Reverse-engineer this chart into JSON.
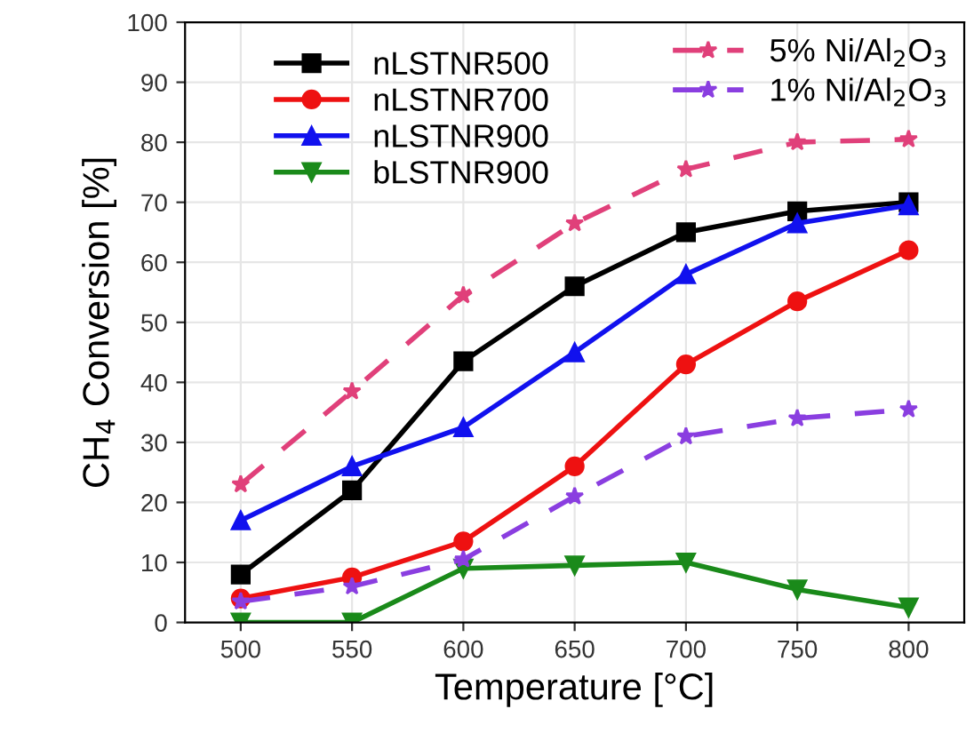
{
  "chart_data": {
    "type": "line",
    "xlabel": "Temperature [°C]",
    "ylabel": "CH$_{4}$ Conversion [%]",
    "x": [
      500,
      550,
      600,
      650,
      700,
      750,
      800
    ],
    "xlim": [
      475,
      825
    ],
    "xticks": [
      500,
      550,
      600,
      650,
      700,
      750,
      800
    ],
    "ylim": [
      0,
      100
    ],
    "yticks": [
      0,
      10,
      20,
      30,
      40,
      50,
      60,
      70,
      80,
      90,
      100
    ],
    "grid": true,
    "legend": "top",
    "series": [
      {
        "name": "nLSTNR500",
        "color": "#000000",
        "marker": "square",
        "line_style": "solid",
        "values": [
          8,
          22,
          43.5,
          56,
          65,
          68.5,
          70
        ]
      },
      {
        "name": "nLSTNR700",
        "color": "#ee1111",
        "marker": "circle",
        "line_style": "solid",
        "values": [
          4,
          7.5,
          13.5,
          26,
          43,
          53.5,
          62
        ]
      },
      {
        "name": "nLSTNR900",
        "color": "#1111ee",
        "marker": "triangle",
        "line_style": "solid",
        "values": [
          17,
          26,
          32.5,
          45,
          58,
          66.5,
          69.5
        ]
      },
      {
        "name": "bLSTNR900",
        "color": "#1a8a1a",
        "marker": "triangle_down",
        "line_style": "solid",
        "values": [
          0,
          0,
          9,
          9.5,
          10,
          5.5,
          2.5
        ]
      },
      {
        "name": "5% Ni/Al$_{2}$O$_{3}$",
        "color": "#e0407a",
        "marker": "star",
        "line_style": "dashed",
        "values": [
          23,
          38.5,
          54.5,
          66.5,
          75.5,
          80,
          80.5
        ]
      },
      {
        "name": "1% Ni/Al$_{2}$O$_{3}$",
        "color": "#8a3ee0",
        "marker": "star",
        "line_style": "dashed",
        "values": [
          3.5,
          6,
          10.5,
          21,
          31,
          34,
          35.5
        ]
      }
    ]
  }
}
